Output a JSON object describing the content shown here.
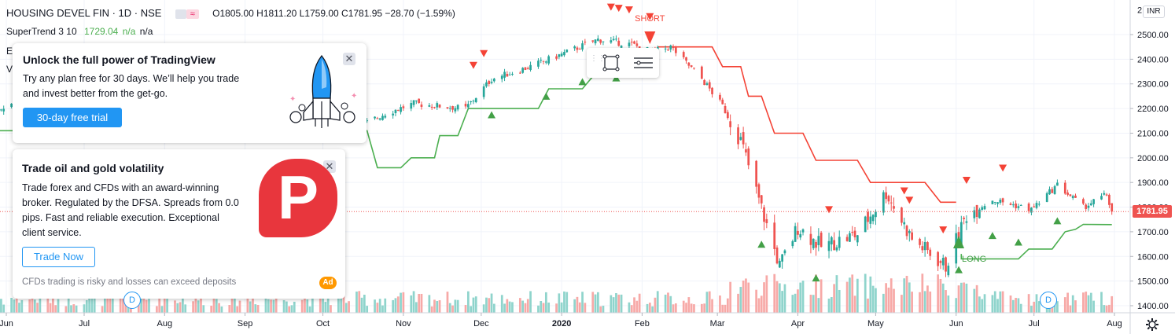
{
  "header": {
    "symbol": "HOUSING DEVEL FIN · 1D · NSE",
    "ohlc": "O1805.00  H1811.20  L1759.00  C1781.95  −28.70 (−1.59%)",
    "indicator_name": "SuperTrend 3 10",
    "indicator_value": "1729.04",
    "indicator_na1": "n/a",
    "indicator_na2": "n/a",
    "side_letter_e": "E",
    "side_letter_v": "V"
  },
  "currency": "INR",
  "last_price": "1781.95",
  "colors": {
    "up": "#26a69a",
    "down": "#ef5350",
    "supertrend_up": "#4caf50",
    "supertrend_down": "#f44336",
    "vol_up": "#8fd4cc",
    "vol_down": "#f7a9a7"
  },
  "signals": {
    "short_label": "SHORT",
    "long_label": "LONG"
  },
  "promo1": {
    "title": "Unlock the full power of TradingView",
    "line1": "Try any plan free for 30 days. We’ll help you trade",
    "line2": "and invest better from the get-go.",
    "button": "30-day free trial",
    "icon": "rocket-icon"
  },
  "promo2": {
    "title": "Trade oil and gold volatility",
    "line1": "Trade forex and CFDs with an award-winning",
    "line2": "broker. Regulated by the DFSA. Spreads from 0.0",
    "line3": "pips. Fast and reliable execution. Exceptional",
    "line4": "client service.",
    "button": "Trade Now",
    "disclaimer": "CFDs trading is risky and losses can exceed deposits",
    "badge": "Ad",
    "logo_letter": "P"
  },
  "dividend_marker": "D",
  "chart_data": {
    "type": "candlestick",
    "title": "",
    "y_ticks": [
      1400,
      1500,
      1600,
      1700,
      1800,
      1900,
      2000,
      2100,
      2200,
      2300,
      2400,
      2500
    ],
    "y_tick_labels": [
      "1400.00",
      "1500.00",
      "1600.00",
      "1700.00",
      "1800.00",
      "1900.00",
      "2000.00",
      "2100.00",
      "2200.00",
      "2300.00",
      "2400.00",
      "2500.00"
    ],
    "y_top_label": "2",
    "ylim": [
      1355,
      2610
    ],
    "x_labels": [
      "Jun",
      "Jul",
      "Aug",
      "Sep",
      "Oct",
      "Nov",
      "Dec",
      "2020",
      "Feb",
      "Mar",
      "Apr",
      "May",
      "Jun",
      "Jul",
      "Aug"
    ],
    "x_label_dates": [
      "2019-06-01",
      "2019-07-01",
      "2019-08-01",
      "2019-09-01",
      "2019-10-01",
      "2019-11-01",
      "2019-12-01",
      "2020-01-01",
      "2020-02-01",
      "2020-03-01",
      "2020-04-01",
      "2020-05-01",
      "2020-06-01",
      "2020-07-01",
      "2020-08-01"
    ],
    "close_path": [
      [
        "2019-05-27",
        2190
      ],
      [
        "2019-06-05",
        2230
      ],
      [
        "2019-06-20",
        2200
      ],
      [
        "2019-07-05",
        2270
      ],
      [
        "2019-07-25",
        2170
      ],
      [
        "2019-08-10",
        2130
      ],
      [
        "2019-08-28",
        2100
      ],
      [
        "2019-09-10",
        2090
      ],
      [
        "2019-09-25",
        2110
      ],
      [
        "2019-10-10",
        2100
      ],
      [
        "2019-10-25",
        2180
      ],
      [
        "2019-11-05",
        2220
      ],
      [
        "2019-11-25",
        2200
      ],
      [
        "2019-12-05",
        2320
      ],
      [
        "2019-12-20",
        2370
      ],
      [
        "2020-01-01",
        2420
      ],
      [
        "2020-01-15",
        2480
      ],
      [
        "2020-01-28",
        2460
      ],
      [
        "2020-02-05",
        2430
      ],
      [
        "2020-02-12",
        2450
      ],
      [
        "2020-02-24",
        2320
      ],
      [
        "2020-03-03",
        2210
      ],
      [
        "2020-03-10",
        2070
      ],
      [
        "2020-03-19",
        1760
      ],
      [
        "2020-03-25",
        1560
      ],
      [
        "2020-04-01",
        1720
      ],
      [
        "2020-04-10",
        1640
      ],
      [
        "2020-04-24",
        1690
      ],
      [
        "2020-05-05",
        1860
      ],
      [
        "2020-05-15",
        1670
      ],
      [
        "2020-05-28",
        1560
      ],
      [
        "2020-06-05",
        1770
      ],
      [
        "2020-06-15",
        1830
      ],
      [
        "2020-06-30",
        1790
      ],
      [
        "2020-07-10",
        1890
      ],
      [
        "2020-07-20",
        1800
      ],
      [
        "2020-07-29",
        1850
      ],
      [
        "2020-07-31",
        1781.95
      ]
    ],
    "supertrend": [
      {
        "trend": "up",
        "points": [
          [
            "2019-05-27",
            2040
          ],
          [
            "2019-05-29",
            2110
          ],
          [
            "2019-10-18",
            2110
          ],
          [
            "2019-10-22",
            1960
          ],
          [
            "2019-10-31",
            1960
          ],
          [
            "2019-11-04",
            2000
          ],
          [
            "2019-11-13",
            2000
          ],
          [
            "2019-11-15",
            2090
          ],
          [
            "2019-11-22",
            2090
          ],
          [
            "2019-11-26",
            2200
          ],
          [
            "2019-12-23",
            2200
          ],
          [
            "2019-12-27",
            2280
          ],
          [
            "2020-01-09",
            2280
          ],
          [
            "2020-01-13",
            2330
          ],
          [
            "2020-01-28",
            2330
          ],
          [
            "2020-01-31",
            2380
          ],
          [
            "2020-02-04",
            2380
          ]
        ]
      },
      {
        "trend": "down",
        "points": [
          [
            "2020-02-07",
            2450
          ],
          [
            "2020-02-28",
            2450
          ],
          [
            "2020-03-03",
            2370
          ],
          [
            "2020-03-10",
            2370
          ],
          [
            "2020-03-13",
            2250
          ],
          [
            "2020-03-18",
            2250
          ],
          [
            "2020-03-23",
            2100
          ],
          [
            "2020-04-03",
            2100
          ],
          [
            "2020-04-08",
            1990
          ],
          [
            "2020-04-24",
            1990
          ],
          [
            "2020-04-29",
            1900
          ],
          [
            "2020-05-20",
            1900
          ],
          [
            "2020-05-26",
            1820
          ],
          [
            "2020-06-01",
            1820
          ]
        ]
      },
      {
        "trend": "up",
        "points": [
          [
            "2020-06-03",
            1610
          ],
          [
            "2020-06-03",
            1590
          ],
          [
            "2020-06-25",
            1590
          ],
          [
            "2020-06-29",
            1630
          ],
          [
            "2020-07-08",
            1630
          ],
          [
            "2020-07-13",
            1700
          ],
          [
            "2020-07-17",
            1710
          ],
          [
            "2020-07-20",
            1730
          ],
          [
            "2020-07-31",
            1729.04
          ]
        ]
      }
    ],
    "buy_signals": [
      "2019-12-05",
      "2019-12-26",
      "2020-01-09",
      "2020-01-22",
      "2020-03-18",
      "2020-04-08",
      "2020-06-02",
      "2020-06-15",
      "2020-06-25",
      "2020-07-10"
    ],
    "sell_signals": [
      "2019-11-28",
      "2019-12-02",
      "2020-01-20",
      "2020-01-23",
      "2020-01-27",
      "2020-02-04",
      "2020-04-13",
      "2020-05-12",
      "2020-05-14",
      "2020-05-27",
      "2020-06-05",
      "2020-06-19"
    ],
    "short_signal_date": "2020-02-04",
    "long_signal_date": "2020-06-02",
    "last_value": 1781.95,
    "legend": []
  }
}
